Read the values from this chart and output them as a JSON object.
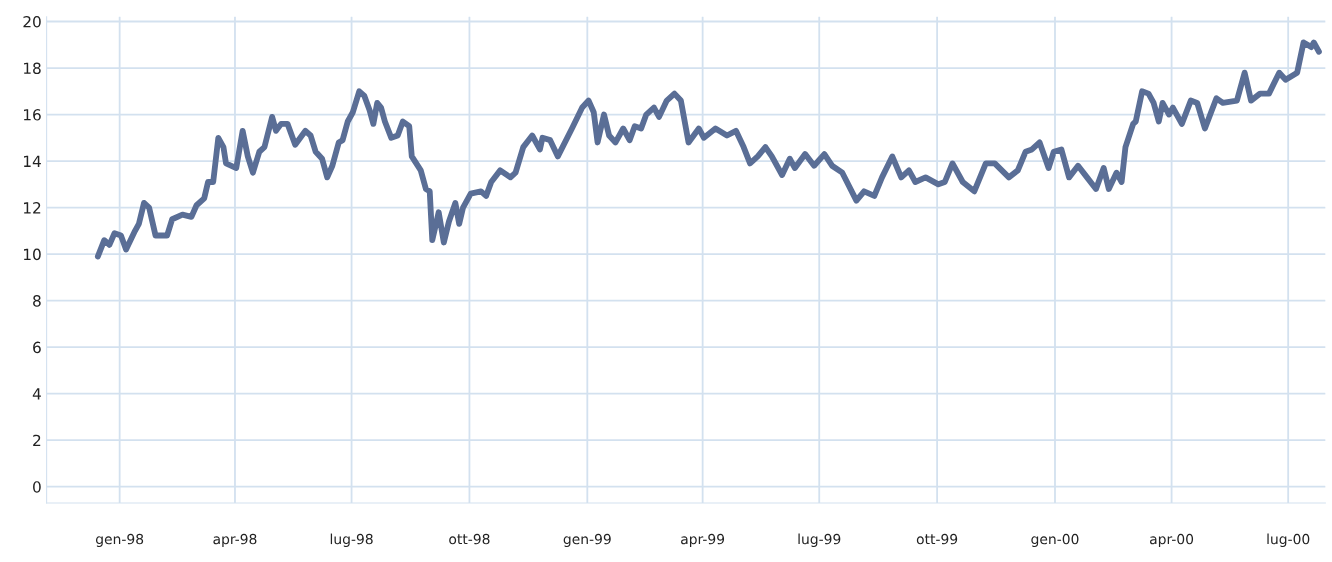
{
  "chart_data": {
    "type": "line",
    "x": [
      "1997-12-15",
      "1997-12-20",
      "1997-12-24",
      "1997-12-28",
      "1998-01-02",
      "1998-01-06",
      "1998-01-13",
      "1998-01-16",
      "1998-01-20",
      "1998-01-24",
      "1998-01-29",
      "1998-02-07",
      "1998-02-11",
      "1998-02-19",
      "1998-02-26",
      "1998-03-02",
      "1998-03-08",
      "1998-03-11",
      "1998-03-15",
      "1998-03-19",
      "1998-03-23",
      "1998-03-25",
      "1998-04-02",
      "1998-04-07",
      "1998-04-11",
      "1998-04-15",
      "1998-04-20",
      "1998-04-24",
      "1998-04-30",
      "1998-05-03",
      "1998-05-07",
      "1998-05-12",
      "1998-05-18",
      "1998-05-26",
      "1998-05-30",
      "1998-06-03",
      "1998-06-08",
      "1998-06-12",
      "1998-06-16",
      "1998-06-21",
      "1998-06-24",
      "1998-06-28",
      "1998-07-02",
      "1998-07-07",
      "1998-07-11",
      "1998-07-15",
      "1998-07-18",
      "1998-07-21",
      "1998-07-24",
      "1998-07-27",
      "1998-08-01",
      "1998-08-06",
      "1998-08-10",
      "1998-08-15",
      "1998-08-17",
      "1998-08-24",
      "1998-08-28",
      "1998-08-31",
      "1998-09-02",
      "1998-09-07",
      "1998-09-11",
      "1998-09-15",
      "1998-09-20",
      "1998-09-23",
      "1998-09-26",
      "1998-10-02",
      "1998-10-10",
      "1998-10-14",
      "1998-10-18",
      "1998-10-25",
      "1998-11-02",
      "1998-11-06",
      "1998-11-12",
      "1998-11-19",
      "1998-11-25",
      "1998-11-27",
      "1998-12-03",
      "1998-12-09",
      "1998-12-20",
      "1998-12-28",
      "1999-01-02",
      "1999-01-06",
      "1999-01-09",
      "1999-01-14",
      "1999-01-18",
      "1999-01-23",
      "1999-01-29",
      "1999-02-03",
      "1999-02-07",
      "1999-02-12",
      "1999-02-16",
      "1999-02-22",
      "1999-02-26",
      "1999-03-04",
      "1999-03-10",
      "1999-03-15",
      "1999-03-21",
      "1999-03-29",
      "1999-04-02",
      "1999-04-11",
      "1999-04-20",
      "1999-04-27",
      "1999-05-03",
      "1999-05-08",
      "1999-05-14",
      "1999-05-20",
      "1999-05-25",
      "1999-06-02",
      "1999-06-08",
      "1999-06-12",
      "1999-06-20",
      "1999-06-27",
      "1999-07-05",
      "1999-07-11",
      "1999-07-19",
      "1999-07-30",
      "1999-08-05",
      "1999-08-13",
      "1999-08-19",
      "1999-08-27",
      "1999-09-03",
      "1999-09-09",
      "1999-09-14",
      "1999-09-22",
      "1999-10-02",
      "1999-10-07",
      "1999-10-13",
      "1999-10-21",
      "1999-10-30",
      "1999-11-08",
      "1999-11-15",
      "1999-11-26",
      "1999-12-03",
      "1999-12-09",
      "1999-12-14",
      "1999-12-20",
      "1999-12-27",
      "1999-12-31",
      "2000-01-06",
      "2000-01-12",
      "2000-01-19",
      "2000-01-26",
      "2000-02-02",
      "2000-02-08",
      "2000-02-12",
      "2000-02-18",
      "2000-02-22",
      "2000-02-25",
      "2000-03-02",
      "2000-03-04",
      "2000-03-09",
      "2000-03-14",
      "2000-03-18",
      "2000-03-22",
      "2000-03-25",
      "2000-03-30",
      "2000-04-02",
      "2000-04-09",
      "2000-04-16",
      "2000-04-21",
      "2000-04-27",
      "2000-05-06",
      "2000-05-11",
      "2000-05-22",
      "2000-05-28",
      "2000-06-02",
      "2000-06-09",
      "2000-06-16",
      "2000-06-24",
      "2000-06-29",
      "2000-07-08",
      "2000-07-13",
      "2000-07-19",
      "2000-07-21",
      "2000-07-25"
    ],
    "series": [
      {
        "color": "#5a6e96",
        "values": [
          9.9,
          10.6,
          10.4,
          10.9,
          10.8,
          10.2,
          11.0,
          11.3,
          12.2,
          12.0,
          10.8,
          10.8,
          11.5,
          11.7,
          11.6,
          12.1,
          12.4,
          13.1,
          13.1,
          15.0,
          14.6,
          13.9,
          13.7,
          15.3,
          14.2,
          13.5,
          14.4,
          14.6,
          15.9,
          15.3,
          15.6,
          15.6,
          14.7,
          15.3,
          15.1,
          14.4,
          14.1,
          13.3,
          13.8,
          14.8,
          14.9,
          15.7,
          16.1,
          17.0,
          16.8,
          16.2,
          15.6,
          16.5,
          16.3,
          15.7,
          15.0,
          15.1,
          15.7,
          15.5,
          14.2,
          13.6,
          12.8,
          12.7,
          10.6,
          11.8,
          10.5,
          11.4,
          12.2,
          11.3,
          12.0,
          12.6,
          12.7,
          12.5,
          13.1,
          13.6,
          13.3,
          13.5,
          14.6,
          15.1,
          14.5,
          15.0,
          14.9,
          14.2,
          15.4,
          16.3,
          16.6,
          16.1,
          14.8,
          16.0,
          15.1,
          14.8,
          15.4,
          14.9,
          15.5,
          15.4,
          16.0,
          16.3,
          15.9,
          16.6,
          16.9,
          16.6,
          14.8,
          15.4,
          15.0,
          15.4,
          15.1,
          15.3,
          14.6,
          13.9,
          14.2,
          14.6,
          14.2,
          13.4,
          14.1,
          13.7,
          14.3,
          13.8,
          14.3,
          13.8,
          13.5,
          12.3,
          12.7,
          12.5,
          13.3,
          14.2,
          13.3,
          13.6,
          13.1,
          13.3,
          13.0,
          13.1,
          13.9,
          13.1,
          12.7,
          13.9,
          13.9,
          13.3,
          13.6,
          14.4,
          14.5,
          14.8,
          13.7,
          14.4,
          14.5,
          13.3,
          13.8,
          13.3,
          12.8,
          13.7,
          12.8,
          13.5,
          13.1,
          14.6,
          15.6,
          15.7,
          17.0,
          16.9,
          16.5,
          15.7,
          16.5,
          16.0,
          16.3,
          15.6,
          16.6,
          16.5,
          15.4,
          16.7,
          16.5,
          16.6,
          17.8,
          16.6,
          16.9,
          16.9,
          17.8,
          17.5,
          17.8,
          19.1,
          18.9,
          19.1,
          18.7
        ]
      }
    ],
    "xlim": [
      "1997-11-05",
      "2000-07-30"
    ],
    "xticks": [
      {
        "value": "1998-01-01",
        "label": "gen-98"
      },
      {
        "value": "1998-04-01",
        "label": "apr-98"
      },
      {
        "value": "1998-07-01",
        "label": "lug-98"
      },
      {
        "value": "1998-10-01",
        "label": "ott-98"
      },
      {
        "value": "1999-01-01",
        "label": "gen-99"
      },
      {
        "value": "1999-04-01",
        "label": "apr-99"
      },
      {
        "value": "1999-07-01",
        "label": "lug-99"
      },
      {
        "value": "1999-10-01",
        "label": "ott-99"
      },
      {
        "value": "2000-01-01",
        "label": "gen-00"
      },
      {
        "value": "2000-04-01",
        "label": "apr-00"
      },
      {
        "value": "2000-07-01",
        "label": "lug-00"
      }
    ],
    "ylim": [
      -0.7,
      20.2
    ],
    "yticks": [
      0,
      2,
      4,
      6,
      8,
      10,
      12,
      14,
      16,
      18,
      20
    ],
    "grid": true,
    "line_style": "solid"
  }
}
